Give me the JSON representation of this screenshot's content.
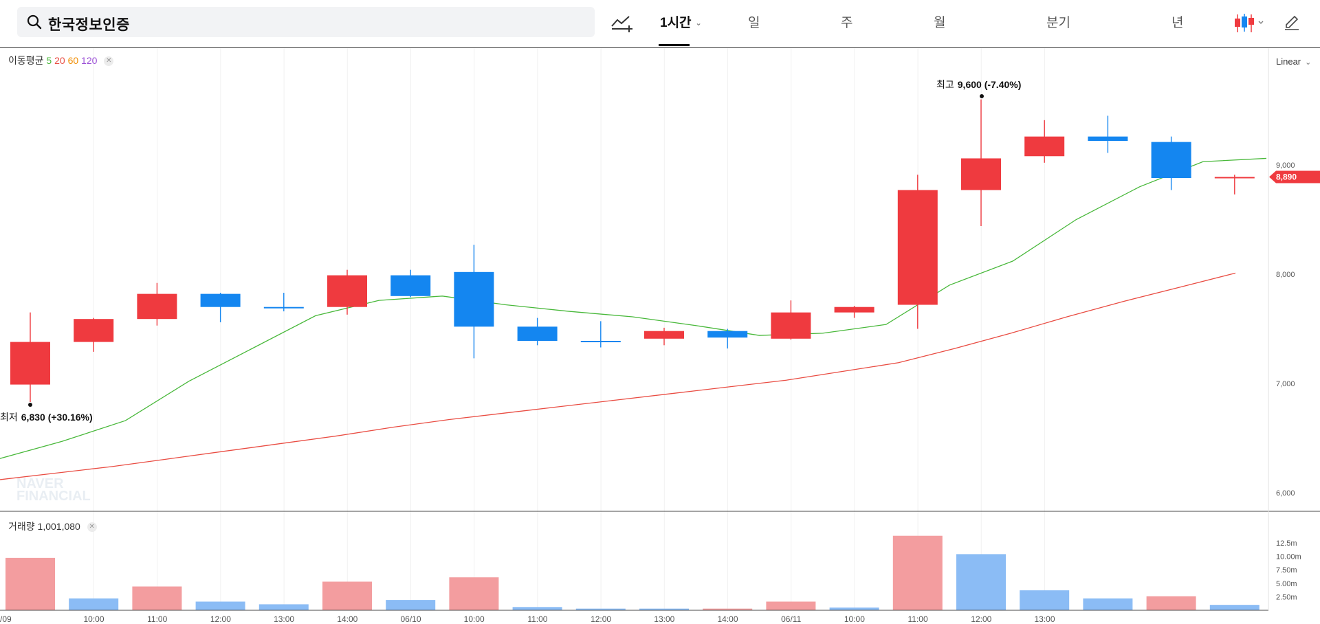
{
  "search": {
    "value": "한국정보인증",
    "icon": "search-icon"
  },
  "toolbar": {
    "indicator_icon": "add-indicator-icon",
    "periods": [
      "1시간",
      "일",
      "주",
      "월",
      "분기",
      "년"
    ],
    "active_period": "1시간",
    "chart_style_icon": "candlestick-icon",
    "draw_icon": "pencil-icon"
  },
  "ma_legend": {
    "label": "이동평균",
    "periods": [
      "5",
      "20",
      "60",
      "120"
    ]
  },
  "scale_mode": "Linear",
  "price_annotations": {
    "high": {
      "label": "최고",
      "value": "9,600 (-7.40%)"
    },
    "low": {
      "label": "최저",
      "value": "6,830 (+30.16%)"
    },
    "current": "8,890"
  },
  "watermark": [
    "NAVER",
    "FINANCIAL"
  ],
  "volume_legend": {
    "label": "거래량",
    "value": "1,001,080"
  },
  "colors": {
    "up": "#ef3a3f",
    "down": "#1486f0",
    "ma5": "#48b83a",
    "ma20": "#e94c42",
    "ma60": "#f08c00",
    "ma120": "#9b4fd6"
  },
  "chart_data": {
    "type": "candlestick",
    "price_axis": {
      "ticks": [
        "9,000",
        "8,000",
        "7,000",
        "6,000"
      ],
      "tick_values": [
        9000,
        8000,
        7000,
        6000
      ],
      "range": [
        5930,
        10100
      ]
    },
    "volume_axis": {
      "ticks": [
        "12.5m",
        "10.00m",
        "7.50m",
        "5.00m",
        "2.50m"
      ],
      "tick_values": [
        12.5,
        10.0,
        7.5,
        5.0,
        2.5
      ]
    },
    "time_labels": [
      "/09",
      "10:00",
      "11:00",
      "12:00",
      "13:00",
      "14:00",
      "06/10",
      "10:00",
      "11:00",
      "12:00",
      "13:00",
      "14:00",
      "06/11",
      "10:00",
      "11:00",
      "12:00",
      "13:00"
    ],
    "candles": [
      {
        "o": 6990,
        "h": 7650,
        "l": 6830,
        "c": 7380
      },
      {
        "o": 7380,
        "h": 7600,
        "l": 7290,
        "c": 7590
      },
      {
        "o": 7590,
        "h": 7920,
        "l": 7530,
        "c": 7820
      },
      {
        "o": 7820,
        "h": 7830,
        "l": 7560,
        "c": 7700
      },
      {
        "o": 7700,
        "h": 7830,
        "l": 7660,
        "c": 7690
      },
      {
        "o": 7700,
        "h": 8040,
        "l": 7630,
        "c": 7990
      },
      {
        "o": 7990,
        "h": 8040,
        "l": 7790,
        "c": 7800
      },
      {
        "o": 8020,
        "h": 8270,
        "l": 7230,
        "c": 7520
      },
      {
        "o": 7520,
        "h": 7600,
        "l": 7350,
        "c": 7390
      },
      {
        "o": 7390,
        "h": 7570,
        "l": 7330,
        "c": 7380
      },
      {
        "o": 7410,
        "h": 7510,
        "l": 7350,
        "c": 7480
      },
      {
        "o": 7480,
        "h": 7500,
        "l": 7320,
        "c": 7420
      },
      {
        "o": 7410,
        "h": 7760,
        "l": 7400,
        "c": 7650
      },
      {
        "o": 7650,
        "h": 7710,
        "l": 7600,
        "c": 7700
      },
      {
        "o": 7720,
        "h": 8910,
        "l": 7500,
        "c": 8770
      },
      {
        "o": 8770,
        "h": 9600,
        "l": 8440,
        "c": 9060
      },
      {
        "o": 9080,
        "h": 9410,
        "l": 9020,
        "c": 9260
      },
      {
        "o": 9260,
        "h": 9450,
        "l": 9110,
        "c": 9220
      },
      {
        "o": 9210,
        "h": 9260,
        "l": 8770,
        "c": 8880
      },
      {
        "o": 8890,
        "h": 8910,
        "l": 8730,
        "c": 8890
      }
    ],
    "ma5": [
      6310,
      6470,
      6660,
      7020,
      7320,
      7620,
      7760,
      7800,
      7720,
      7660,
      7610,
      7530,
      7440,
      7460,
      7540,
      7900,
      8120,
      8500,
      8800,
      9030,
      9060
    ],
    "ma20": [
      6120,
      6180,
      6240,
      6310,
      6380,
      6450,
      6520,
      6600,
      6670,
      6730,
      6790,
      6850,
      6910,
      6970,
      7030,
      7110,
      7190,
      7320,
      7460,
      7610,
      7750,
      7880,
      8010
    ],
    "volume": [
      {
        "v": 9.7,
        "up": true
      },
      {
        "v": 2.2,
        "up": false
      },
      {
        "v": 4.4,
        "up": true
      },
      {
        "v": 1.6,
        "up": false
      },
      {
        "v": 1.1,
        "up": false
      },
      {
        "v": 5.3,
        "up": true
      },
      {
        "v": 1.9,
        "up": false
      },
      {
        "v": 6.1,
        "up": true
      },
      {
        "v": 0.6,
        "up": false
      },
      {
        "v": 0.3,
        "up": false
      },
      {
        "v": 0.3,
        "up": false
      },
      {
        "v": 0.3,
        "up": true
      },
      {
        "v": 1.6,
        "up": true
      },
      {
        "v": 0.5,
        "up": false
      },
      {
        "v": 13.8,
        "up": true
      },
      {
        "v": 10.4,
        "up": false
      },
      {
        "v": 3.7,
        "up": false
      },
      {
        "v": 2.2,
        "up": false
      },
      {
        "v": 2.6,
        "up": true
      },
      {
        "v": 1.0,
        "up": false
      }
    ]
  }
}
